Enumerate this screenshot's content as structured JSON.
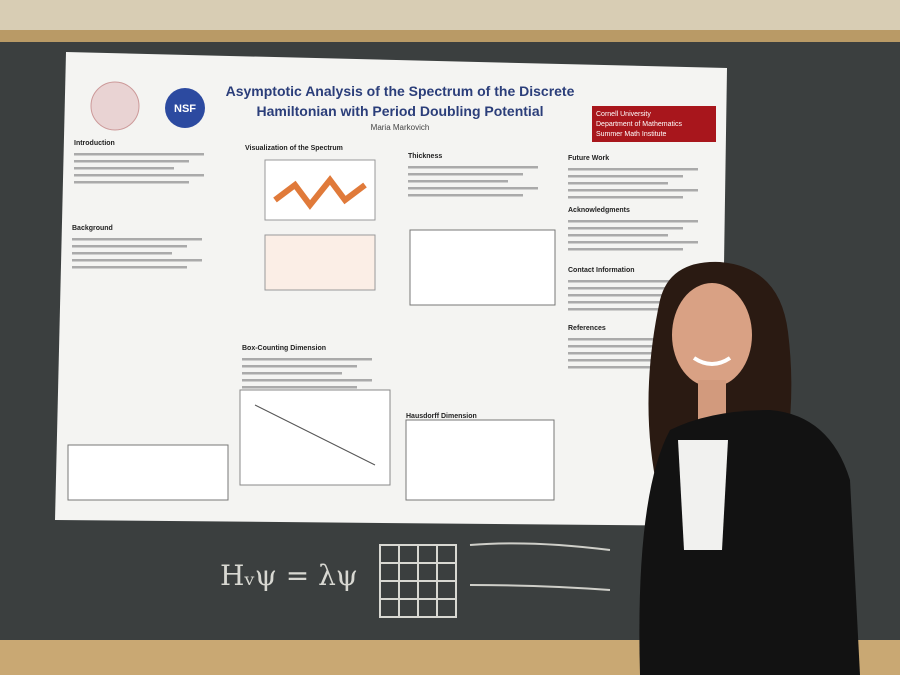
{
  "poster": {
    "title_line_1": "Asymptotic Analysis of the Spectrum of the Discrete",
    "title_line_2": "Hamiltonian with Period Doubling Potential",
    "authors": "Maria Markovich",
    "logo_text": [
      "Cornell University",
      "Department of Mathematics",
      "Summer Math Institute"
    ],
    "sections": [
      "Introduction",
      "Background",
      "Visualization of the Spectrum",
      "Box-Counting Dimension",
      "Thickness",
      "Hausdorff Dimension",
      "Future Work",
      "Acknowledgments",
      "Contact Information",
      "References"
    ]
  },
  "chalkboard": {
    "equation": "Hᵥψ = λψ"
  }
}
